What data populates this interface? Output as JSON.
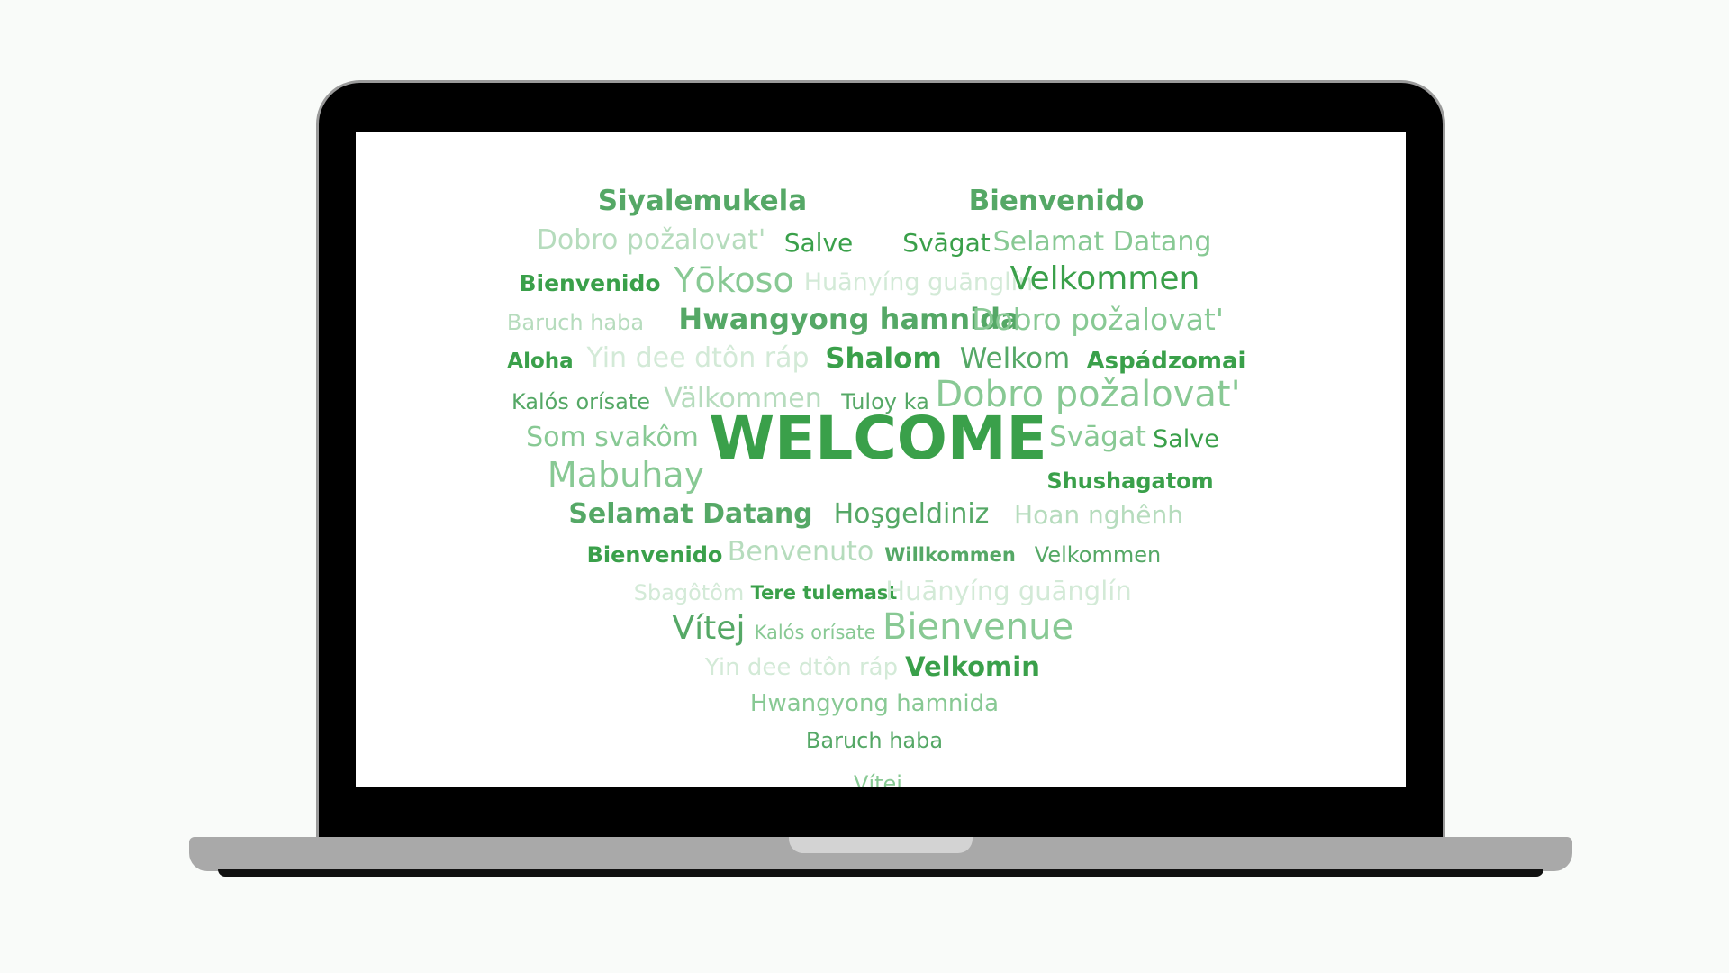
{
  "colors": {
    "dark": "#3aa04a",
    "mid": "#55a866",
    "light": "#88c994",
    "pale": "#b6dcbd",
    "faint": "#d3ead7",
    "frame": "#000000",
    "base": "#a9a9a9"
  },
  "words": [
    {
      "text": "Siyalemukela"
    },
    {
      "text": "Bienvenido"
    },
    {
      "text": "Dobro požalovat'"
    },
    {
      "text": "Salve"
    },
    {
      "text": "Svāgat"
    },
    {
      "text": "Selamat Datang"
    },
    {
      "text": "Bienvenido"
    },
    {
      "text": "Yōkoso"
    },
    {
      "text": "Huānyíng guānglín"
    },
    {
      "text": "Velkommen"
    },
    {
      "text": "Baruch haba"
    },
    {
      "text": "Hwangyong hamnida"
    },
    {
      "text": "Dobro požalovat'"
    },
    {
      "text": "Aloha"
    },
    {
      "text": "Yin dee dtôn ráp"
    },
    {
      "text": "Shalom"
    },
    {
      "text": "Welkom"
    },
    {
      "text": "Aspádzomai"
    },
    {
      "text": "Kalós orísate"
    },
    {
      "text": "Välkommen"
    },
    {
      "text": "Tuloy ka"
    },
    {
      "text": "Dobro požalovat'"
    },
    {
      "text": "Som svakôm"
    },
    {
      "text": "WELCOME"
    },
    {
      "text": "Svāgat"
    },
    {
      "text": "Salve"
    },
    {
      "text": "Mabuhay"
    },
    {
      "text": "Shushagatom"
    },
    {
      "text": "Selamat Datang"
    },
    {
      "text": "Hoşgeldiniz"
    },
    {
      "text": "Hoan nghênh"
    },
    {
      "text": "Bienvenido"
    },
    {
      "text": "Benvenuto"
    },
    {
      "text": "Willkommen"
    },
    {
      "text": "Velkommen"
    },
    {
      "text": "Sbagôtôm"
    },
    {
      "text": "Tere tulemast"
    },
    {
      "text": "Huānyíng guānglín"
    },
    {
      "text": "Vítej"
    },
    {
      "text": "Kalós orísate"
    },
    {
      "text": "Bienvenue"
    },
    {
      "text": "Yin dee dtôn ráp"
    },
    {
      "text": "Velkomin"
    },
    {
      "text": "Hwangyong hamnida"
    },
    {
      "text": "Baruch haba"
    },
    {
      "text": "Vítej"
    }
  ]
}
